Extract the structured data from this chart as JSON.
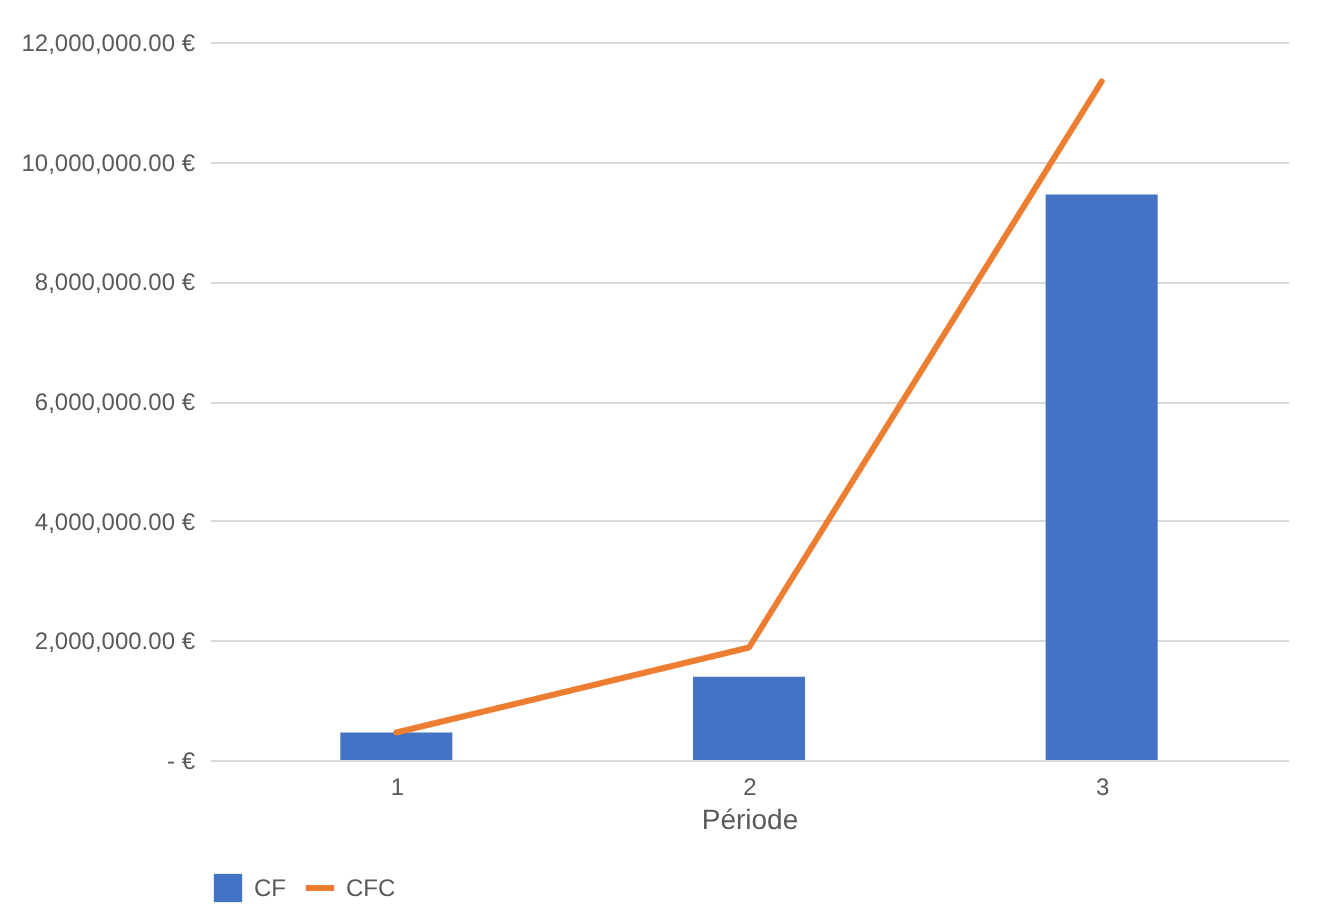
{
  "chart_data": {
    "type": "bar",
    "xlabel": "Période",
    "categories": [
      "1",
      "2",
      "3"
    ],
    "series": [
      {
        "name": "CF",
        "color": "#4472c4",
        "values": [
          460000,
          1390000,
          9450000
        ]
      },
      {
        "name": "CFC",
        "type": "line",
        "color": "#ed7d31",
        "values": [
          460000,
          1880000,
          11340000
        ]
      }
    ],
    "ylim": [
      0,
      12000000
    ],
    "yticks": [
      {
        "value": 0,
        "label": "-  €"
      },
      {
        "value": 2000000,
        "label": "2,000,000.00 €"
      },
      {
        "value": 4000000,
        "label": "4,000,000.00 €"
      },
      {
        "value": 6000000,
        "label": "6,000,000.00 €"
      },
      {
        "value": 8000000,
        "label": "8,000,000.00 €"
      },
      {
        "value": 10000000,
        "label": "10,000,000.00 €"
      },
      {
        "value": 12000000,
        "label": "12,000,000.00 €"
      }
    ],
    "grid": "y",
    "legend": "bottom",
    "marker": "none",
    "line_style": "solid"
  }
}
